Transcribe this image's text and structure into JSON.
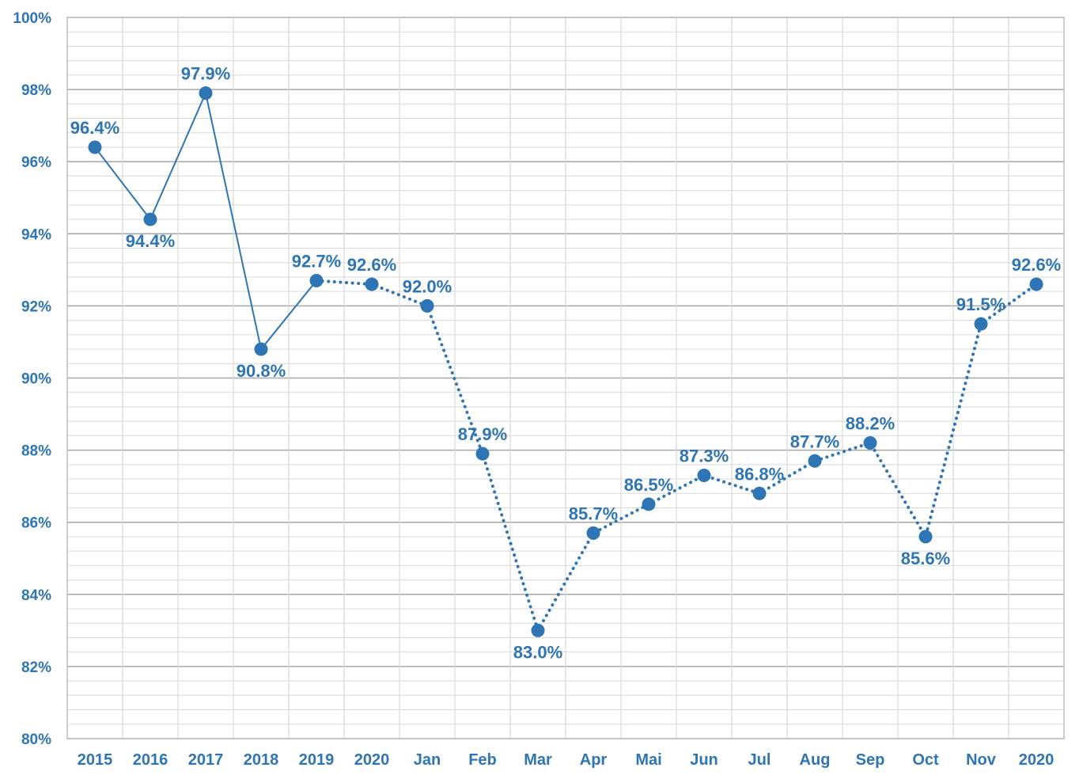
{
  "chart_data": {
    "type": "line",
    "categories": [
      "2015",
      "2016",
      "2017",
      "2018",
      "2019",
      "2020",
      "Jan",
      "Feb",
      "Mar",
      "Apr",
      "Mai",
      "Jun",
      "Jul",
      "Aug",
      "Sep",
      "Oct",
      "Nov",
      "2020"
    ],
    "values": [
      96.4,
      94.4,
      97.9,
      90.8,
      92.7,
      92.6,
      92.0,
      87.9,
      83.0,
      85.7,
      86.5,
      87.3,
      86.8,
      87.7,
      88.2,
      85.6,
      91.5,
      92.6
    ],
    "data_labels": [
      "96.4%",
      "94.4%",
      "97.9%",
      "90.8%",
      "92.7%",
      "92.6%",
      "92.0%",
      "87.9%",
      "83.0%",
      "85.7%",
      "86.5%",
      "87.3%",
      "86.8%",
      "87.7%",
      "88.2%",
      "85.6%",
      "91.5%",
      "92.6%"
    ],
    "label_position": [
      "above",
      "below",
      "above",
      "below",
      "above",
      "above",
      "above",
      "above",
      "below",
      "above",
      "above",
      "above",
      "above",
      "above",
      "above",
      "below",
      "above",
      "above"
    ],
    "segments": [
      {
        "style": "solid",
        "from": 0,
        "to": 4
      },
      {
        "style": "dotted",
        "from": 4,
        "to": 17
      }
    ],
    "ylim": [
      80,
      100
    ],
    "yticks": [
      80,
      82,
      84,
      86,
      88,
      90,
      92,
      94,
      96,
      98,
      100
    ],
    "ytick_labels": [
      "80%",
      "82%",
      "84%",
      "86%",
      "88%",
      "90%",
      "92%",
      "94%",
      "96%",
      "98%",
      "100%"
    ],
    "grid": true,
    "colors": {
      "series": "#2E75B6",
      "major_grid": "#A6A6A6",
      "minor_grid": "#D9D9D9",
      "axis": "#BFBFBF"
    },
    "title": "",
    "xlabel": "",
    "ylabel": ""
  }
}
